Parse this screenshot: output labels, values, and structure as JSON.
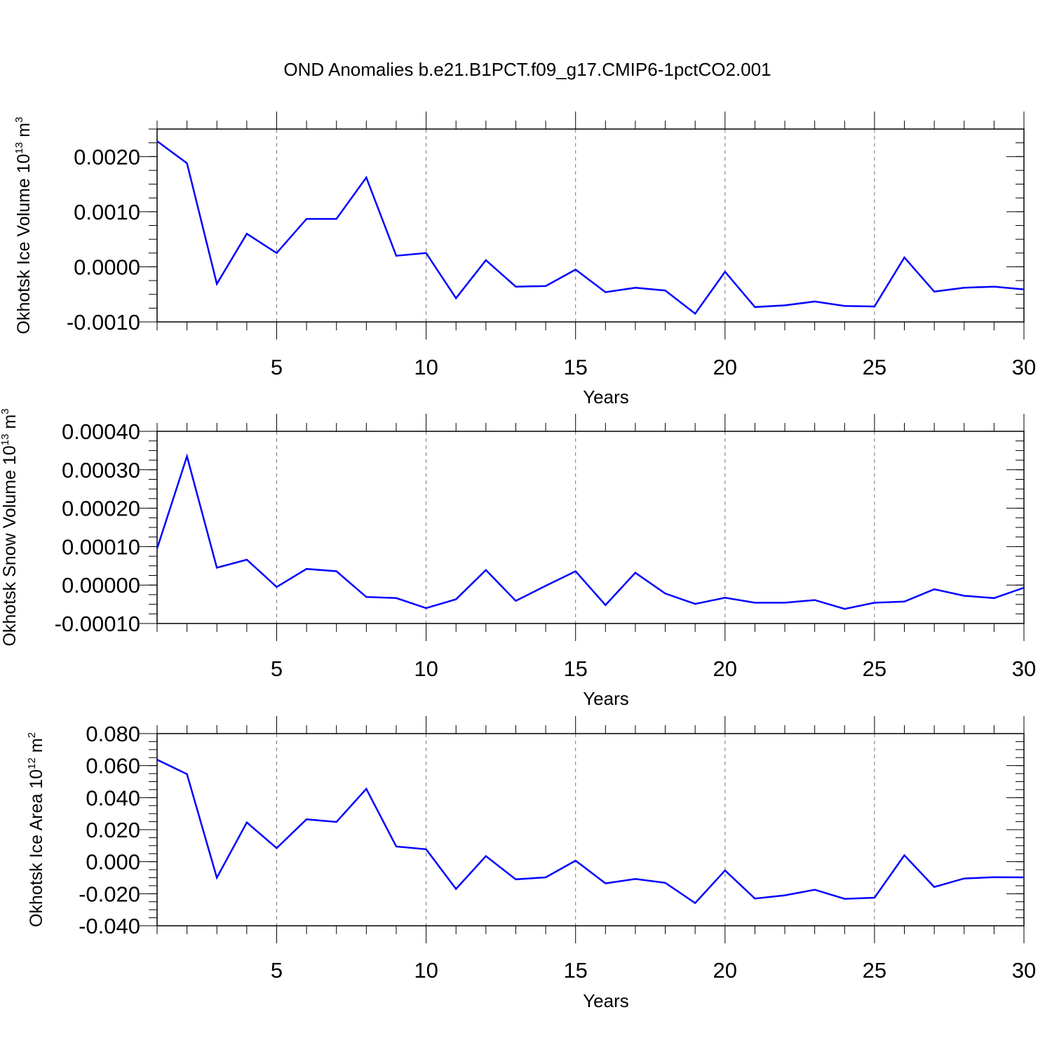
{
  "title": "OND Anomalies b.e21.B1PCT.f09_g17.CMIP6-1pctCO2.001",
  "chart_data": [
    {
      "type": "line",
      "title": "OND Anomalies b.e21.B1PCT.f09_g17.CMIP6-1pctCO2.001",
      "xlabel": "Years",
      "ylabel": "Okhotsk Ice Volume 10",
      "ylabel_exp": "13",
      "ylabel_unit": " m",
      "ylabel_unit_exp": "3",
      "xlim": [
        1,
        30
      ],
      "ylim": [
        -0.001,
        0.0025
      ],
      "yticks": [
        -0.001,
        0.0,
        0.001,
        0.002
      ],
      "ytick_labels": [
        "-0.0010",
        "0.0000",
        "0.0010",
        "0.0020"
      ],
      "xticks": [
        5,
        10,
        15,
        20,
        25,
        30
      ],
      "xtick_labels": [
        "5",
        "10",
        "15",
        "20",
        "25",
        "30"
      ],
      "grid": "vertical dashed at major x ticks",
      "line_color": "#0000ff",
      "series": [
        {
          "name": "Okhotsk Ice Volume",
          "x": [
            1,
            2,
            3,
            4,
            5,
            6,
            7,
            8,
            9,
            10,
            11,
            12,
            13,
            14,
            15,
            16,
            17,
            18,
            19,
            20,
            21,
            22,
            23,
            24,
            25,
            26,
            27,
            28,
            29,
            30
          ],
          "values": [
            0.00228,
            0.00188,
            -0.00031,
            0.0006,
            0.00025,
            0.00087,
            0.00087,
            0.00162,
            0.0002,
            0.00025,
            -0.00057,
            0.00012,
            -0.00036,
            -0.00035,
            -5e-05,
            -0.00046,
            -0.00038,
            -0.00043,
            -0.00085,
            -9e-05,
            -0.00073,
            -0.0007,
            -0.00063,
            -0.00071,
            -0.00072,
            0.00017,
            -0.00045,
            -0.00038,
            -0.00036,
            -0.00041
          ]
        }
      ]
    },
    {
      "type": "line",
      "xlabel": "Years",
      "ylabel": "Okhotsk Snow Volume 10",
      "ylabel_exp": "13",
      "ylabel_unit": " m",
      "ylabel_unit_exp": "3",
      "xlim": [
        1,
        30
      ],
      "ylim": [
        -0.0001,
        0.0004
      ],
      "yticks": [
        -0.0001,
        0.0,
        0.0001,
        0.0002,
        0.0003,
        0.0004
      ],
      "ytick_labels": [
        "-0.00010",
        "0.00000",
        "0.00010",
        "0.00020",
        "0.00030",
        "0.00040"
      ],
      "xticks": [
        5,
        10,
        15,
        20,
        25,
        30
      ],
      "xtick_labels": [
        "5",
        "10",
        "15",
        "20",
        "25",
        "30"
      ],
      "grid": "vertical dashed at major x ticks",
      "line_color": "#0000ff",
      "series": [
        {
          "name": "Okhotsk Snow Volume",
          "x": [
            1,
            2,
            3,
            4,
            5,
            6,
            7,
            8,
            9,
            10,
            11,
            12,
            13,
            14,
            15,
            16,
            17,
            18,
            19,
            20,
            21,
            22,
            23,
            24,
            25,
            26,
            27,
            28,
            29,
            30
          ],
          "values": [
            9.5e-05,
            0.000335,
            4.5e-05,
            6.6e-05,
            -5e-06,
            4.2e-05,
            3.6e-05,
            -3.1e-05,
            -3.4e-05,
            -6e-05,
            -3.7e-05,
            3.9e-05,
            -4.1e-05,
            -2e-06,
            3.6e-05,
            -5.2e-05,
            3.2e-05,
            -2.2e-05,
            -4.9e-05,
            -3.3e-05,
            -4.6e-05,
            -4.6e-05,
            -3.9e-05,
            -6.2e-05,
            -4.6e-05,
            -4.3e-05,
            -1.1e-05,
            -2.8e-05,
            -3.4e-05,
            -7e-06
          ]
        }
      ]
    },
    {
      "type": "line",
      "xlabel": "Years",
      "ylabel": "Okhotsk Ice Area 10",
      "ylabel_exp": "12",
      "ylabel_unit": " m",
      "ylabel_unit_exp": "2",
      "xlim": [
        1,
        30
      ],
      "ylim": [
        -0.04,
        0.08
      ],
      "yticks": [
        -0.04,
        -0.02,
        0.0,
        0.02,
        0.04,
        0.06,
        0.08
      ],
      "ytick_labels": [
        "-0.040",
        "-0.020",
        "0.000",
        "0.020",
        "0.040",
        "0.060",
        "0.080"
      ],
      "xticks": [
        5,
        10,
        15,
        20,
        25,
        30
      ],
      "xtick_labels": [
        "5",
        "10",
        "15",
        "20",
        "25",
        "30"
      ],
      "grid": "vertical dashed at major x ticks",
      "line_color": "#0000ff",
      "series": [
        {
          "name": "Okhotsk Ice Area",
          "x": [
            1,
            2,
            3,
            4,
            5,
            6,
            7,
            8,
            9,
            10,
            11,
            12,
            13,
            14,
            15,
            16,
            17,
            18,
            19,
            20,
            21,
            22,
            23,
            24,
            25,
            26,
            27,
            28,
            29,
            30
          ],
          "values": [
            0.0637,
            0.0547,
            -0.01,
            0.0245,
            0.0085,
            0.0265,
            0.0248,
            0.0455,
            0.0095,
            0.0078,
            -0.017,
            0.0035,
            -0.011,
            -0.0098,
            0.0007,
            -0.0135,
            -0.0108,
            -0.0132,
            -0.0258,
            -0.0055,
            -0.023,
            -0.021,
            -0.0175,
            -0.0232,
            -0.0225,
            0.004,
            -0.0158,
            -0.0105,
            -0.0097,
            -0.0098
          ]
        }
      ]
    }
  ]
}
